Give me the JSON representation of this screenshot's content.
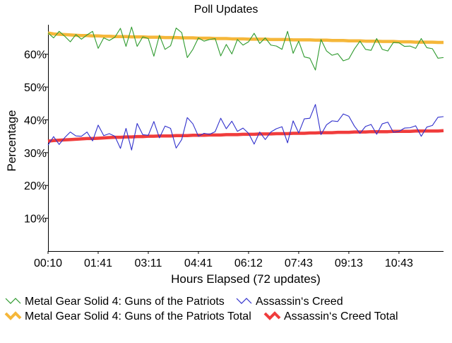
{
  "chart_data": {
    "type": "line",
    "title": "Poll Updates",
    "xlabel": "Hours Elapsed (72 updates)",
    "ylabel": "Percentage",
    "ylim": [
      0,
      69
    ],
    "yticks": [
      10,
      20,
      30,
      40,
      50,
      60
    ],
    "ytick_labels": [
      "10%",
      "20%",
      "30%",
      "40%",
      "50%",
      "60%"
    ],
    "update_count": 72,
    "xtick_positions": [
      0,
      9,
      18,
      27,
      36,
      45,
      54,
      63
    ],
    "xtick_labels": [
      "00:10",
      "01:41",
      "03:11",
      "04:41",
      "06:12",
      "07:43",
      "09:13",
      "10:43"
    ],
    "grid": false,
    "legend_position": "bottom",
    "series": [
      {
        "name": "Metal Gear Solid 4: Guns of the Patriots",
        "color": "#2e9a2e",
        "style": "thin",
        "values": [
          66.5,
          65.0,
          67.0,
          65.5,
          63.8,
          66.0,
          64.6,
          65.9,
          67.0,
          61.8,
          65.0,
          64.2,
          65.2,
          67.9,
          62.4,
          68.3,
          62.4,
          65.3,
          64.8,
          59.4,
          65.8,
          61.5,
          62.6,
          68.0,
          66.6,
          59.0,
          61.5,
          65.0,
          64.0,
          64.5,
          64.8,
          59.5,
          63.0,
          60.1,
          64.5,
          62.8,
          63.8,
          66.4,
          63.3,
          65.0,
          62.8,
          62.5,
          61.5,
          67.0,
          60.3,
          64.0,
          59.2,
          58.8,
          55.2,
          64.5,
          61.0,
          59.7,
          60.2,
          58.0,
          58.6,
          61.6,
          64.0,
          61.5,
          61.2,
          64.8,
          61.5,
          61.0,
          63.6,
          63.5,
          62.4,
          62.5,
          61.8,
          64.8,
          62.0,
          61.7,
          58.8,
          59.0
        ]
      },
      {
        "name": "Assassin‘s Creed",
        "color": "#3030cc",
        "style": "thin",
        "values": [
          32.3,
          34.9,
          32.5,
          34.6,
          36.3,
          35.1,
          35.0,
          36.3,
          33.6,
          38.4,
          35.2,
          35.8,
          35.0,
          31.3,
          37.4,
          30.8,
          38.9,
          35.5,
          35.3,
          39.5,
          34.5,
          38.1,
          37.4,
          31.4,
          34.0,
          40.7,
          38.8,
          35.0,
          35.9,
          35.6,
          36.4,
          40.5,
          37.3,
          39.6,
          36.5,
          37.5,
          35.9,
          32.6,
          36.3,
          34.0,
          36.3,
          37.3,
          37.9,
          33.0,
          39.7,
          36.0,
          40.3,
          40.5,
          44.7,
          35.5,
          38.5,
          39.7,
          39.5,
          41.8,
          41.1,
          38.1,
          35.9,
          38.0,
          38.6,
          35.6,
          38.8,
          39.3,
          36.2,
          36.5,
          37.5,
          37.6,
          38.2,
          35.0,
          37.8,
          38.3,
          40.8,
          41.0
        ]
      },
      {
        "name": "Metal Gear Solid 4: Guns of the Patriots Total",
        "color": "#f5b73a",
        "style": "thick",
        "values": [
          66.5,
          66.2,
          66.1,
          66.0,
          65.9,
          65.8,
          65.7,
          65.7,
          65.6,
          65.6,
          65.5,
          65.5,
          65.4,
          65.4,
          65.4,
          65.3,
          65.3,
          65.3,
          65.2,
          65.2,
          65.2,
          65.1,
          65.1,
          65.1,
          65.0,
          65.0,
          65.0,
          64.9,
          64.9,
          64.9,
          64.8,
          64.8,
          64.8,
          64.7,
          64.7,
          64.7,
          64.6,
          64.6,
          64.6,
          64.6,
          64.5,
          64.5,
          64.5,
          64.5,
          64.4,
          64.4,
          64.4,
          64.4,
          64.3,
          64.3,
          64.3,
          64.2,
          64.2,
          64.2,
          64.1,
          64.1,
          64.1,
          64.0,
          64.0,
          64.0,
          63.9,
          63.9,
          63.9,
          63.8,
          63.8,
          63.8,
          63.7,
          63.7,
          63.7,
          63.7,
          63.6,
          63.6
        ]
      },
      {
        "name": "Assassin‘s Creed Total",
        "color": "#f03c3c",
        "style": "thick",
        "values": [
          33.5,
          33.7,
          33.8,
          33.9,
          34.0,
          34.1,
          34.2,
          34.3,
          34.3,
          34.4,
          34.5,
          34.6,
          34.7,
          34.7,
          34.8,
          34.8,
          34.9,
          34.9,
          35.0,
          35.0,
          35.1,
          35.1,
          35.1,
          35.2,
          35.2,
          35.2,
          35.3,
          35.3,
          35.3,
          35.4,
          35.4,
          35.4,
          35.5,
          35.5,
          35.5,
          35.6,
          35.6,
          35.6,
          35.7,
          35.7,
          35.7,
          35.8,
          35.8,
          35.8,
          35.9,
          35.9,
          35.9,
          36.0,
          36.0,
          36.1,
          36.1,
          36.1,
          36.2,
          36.2,
          36.2,
          36.3,
          36.3,
          36.3,
          36.4,
          36.4,
          36.4,
          36.4,
          36.5,
          36.5,
          36.5,
          36.5,
          36.6,
          36.6,
          36.6,
          36.6,
          36.6,
          36.7
        ]
      }
    ],
    "legend": [
      {
        "label": "Metal Gear Solid 4: Guns of the Patriots",
        "series": 0
      },
      {
        "label": "Assassin‘s Creed",
        "series": 1
      },
      {
        "label": "Metal Gear Solid 4: Guns of the Patriots Total",
        "series": 2
      },
      {
        "label": "Assassin‘s Creed Total",
        "series": 3
      }
    ]
  }
}
